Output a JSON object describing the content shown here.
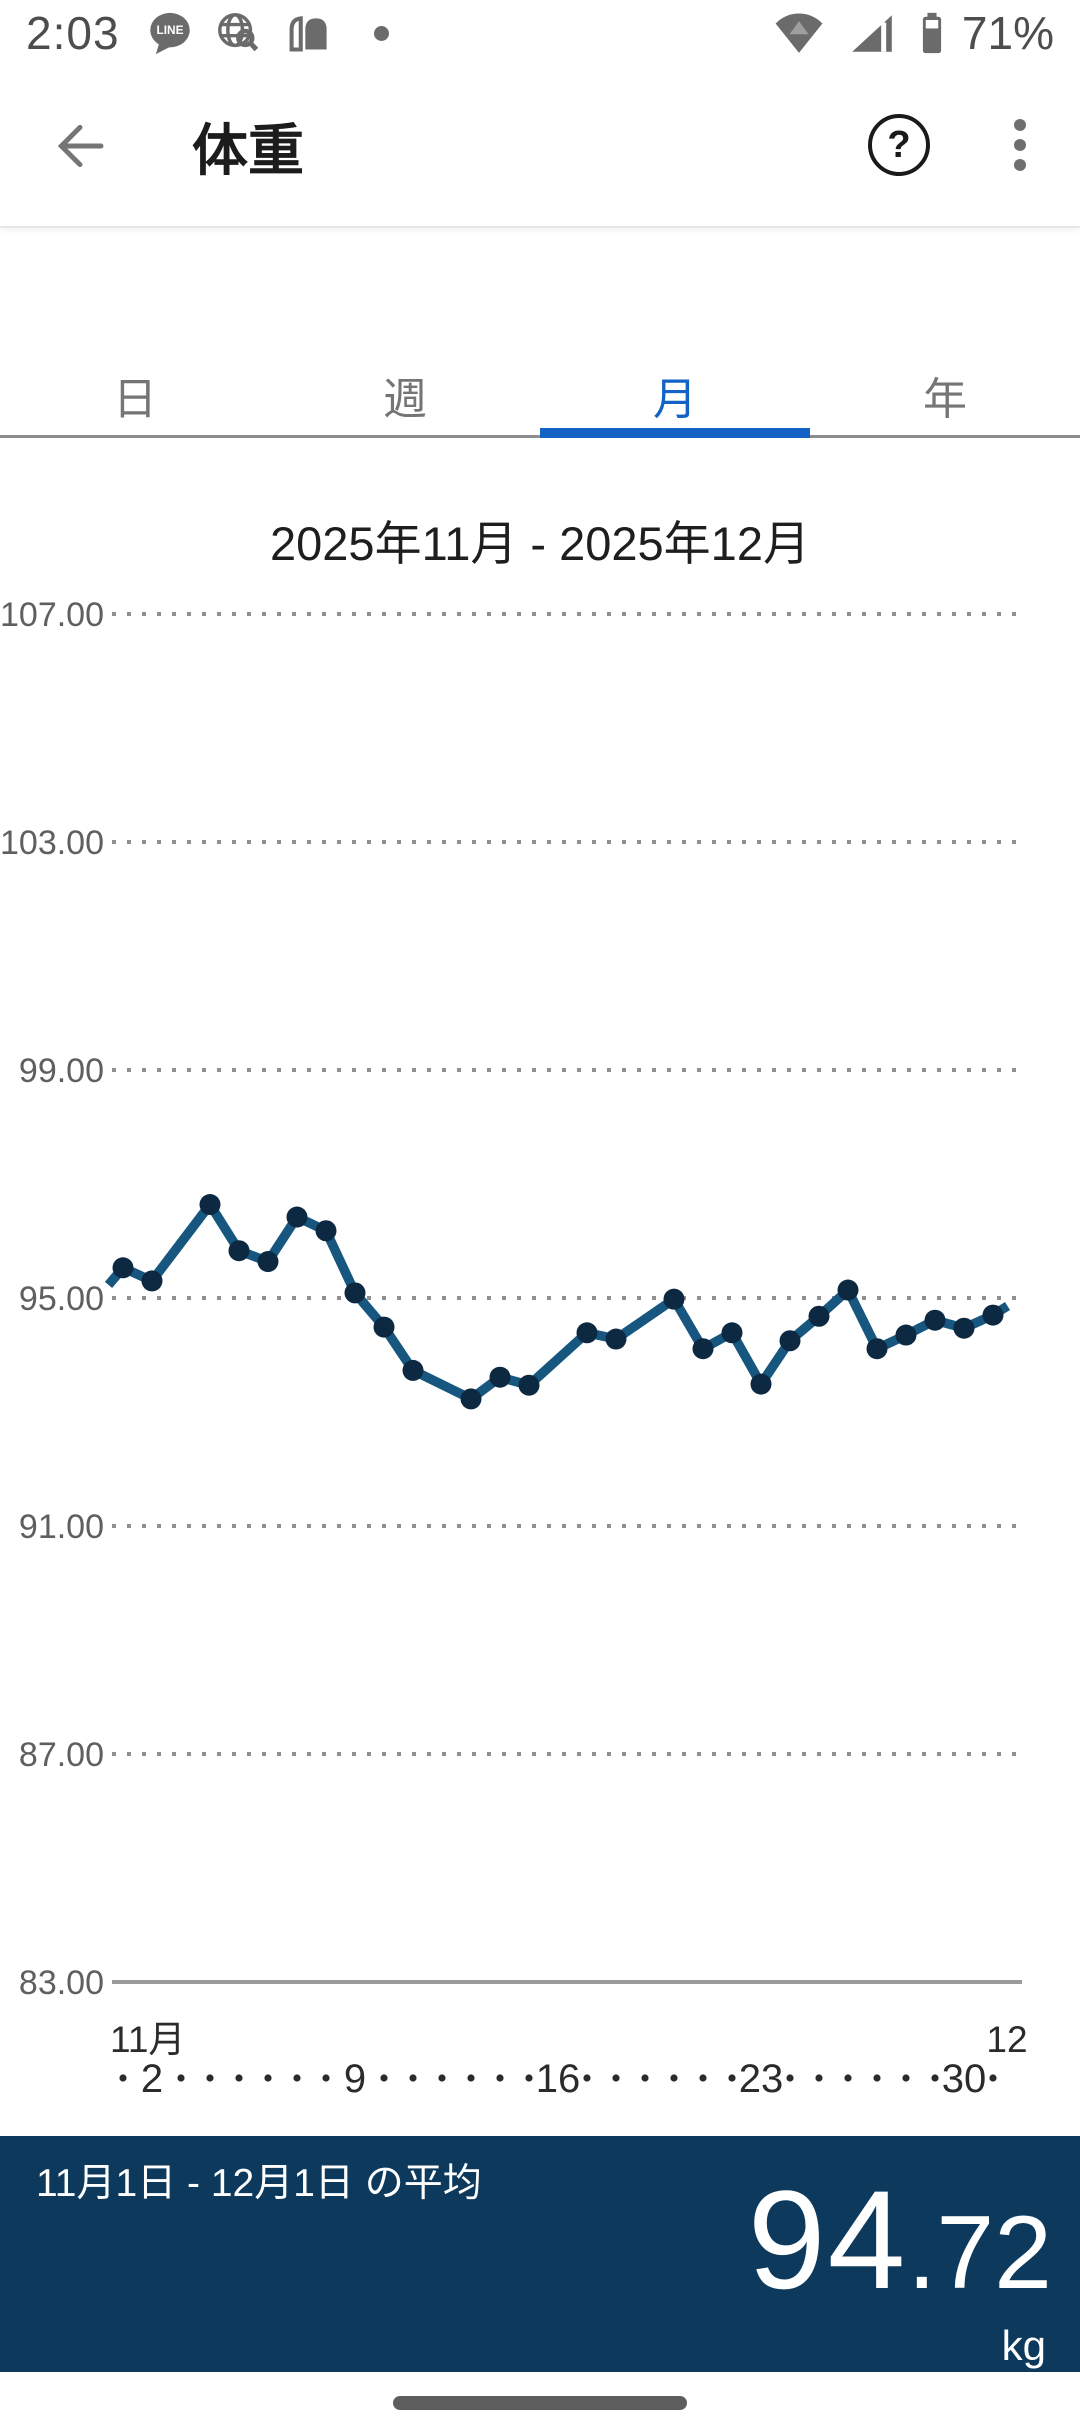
{
  "colors": {
    "accent_blue": "#1263c5",
    "chart_line": "#17567f",
    "chart_marker": "#0d2941",
    "grid_dotted": "#8f8f8f",
    "axis_solid": "#9a9a9a",
    "axis_text": "#5f5f5f",
    "xaxis_text": "#2b2b2b",
    "panel_bg": "#0d3a5c",
    "status_icon_gray": "#6b6b6b"
  },
  "status_bar": {
    "time": "2:03",
    "battery_percent": "71%",
    "line_icon_text": "LINE",
    "left_icons": [
      "line-app-icon",
      "web-search-icon",
      "door-open-icon",
      "notification-dot"
    ],
    "right_icons": [
      "wifi-icon",
      "cellular-signal-icon",
      "battery-icon"
    ]
  },
  "header": {
    "title": "体重",
    "icons": [
      "back-arrow-icon",
      "help-circle-icon",
      "overflow-menu-icon"
    ],
    "help_glyph": "?"
  },
  "tabs": {
    "items": [
      {
        "label": "日",
        "active": false
      },
      {
        "label": "週",
        "active": false
      },
      {
        "label": "月",
        "active": true
      },
      {
        "label": "年",
        "active": false
      }
    ]
  },
  "chart_data": {
    "type": "line",
    "title": "2025年11月 - 2025年12月",
    "ylabel": "",
    "xlabel": "",
    "ylim": [
      83,
      107
    ],
    "grid": "dotted horizontal gridlines, solid baseline at 83.00",
    "legend": "none",
    "y_axis": {
      "ticks": [
        107,
        103,
        99,
        95,
        91,
        87,
        83
      ],
      "tick_labels": [
        "107.00",
        "103.00",
        "99.00",
        "95.00",
        "91.00",
        "87.00",
        "83.00"
      ],
      "baseline_tick": 83
    },
    "x_axis": {
      "month_label_left": "11月",
      "month_label_right": "12",
      "n_days": 31,
      "labeled_days": [
        2,
        9,
        16,
        23,
        30
      ],
      "range_note": "day 1 = 11月1日, day 31 = 12月1日, unlabeled days shown as small dots"
    },
    "missing_days": [
      3,
      12,
      16,
      19
    ],
    "edge_start": {
      "day": 0.5,
      "value": 95.23
    },
    "edge_end": {
      "day": 31.5,
      "value": 94.86
    },
    "series": [
      {
        "name": "体重",
        "unit": "kg",
        "points": [
          {
            "day": 1,
            "value": 95.53
          },
          {
            "day": 2,
            "value": 95.3
          },
          {
            "day": 4,
            "value": 96.64
          },
          {
            "day": 5,
            "value": 95.83
          },
          {
            "day": 6,
            "value": 95.64
          },
          {
            "day": 7,
            "value": 96.42
          },
          {
            "day": 8,
            "value": 96.18
          },
          {
            "day": 9,
            "value": 95.09
          },
          {
            "day": 10,
            "value": 94.49
          },
          {
            "day": 11,
            "value": 93.73
          },
          {
            "day": 13,
            "value": 93.23
          },
          {
            "day": 14,
            "value": 93.61
          },
          {
            "day": 15,
            "value": 93.47
          },
          {
            "day": 17,
            "value": 94.39
          },
          {
            "day": 18,
            "value": 94.28
          },
          {
            "day": 20,
            "value": 94.98
          },
          {
            "day": 21,
            "value": 94.11
          },
          {
            "day": 22,
            "value": 94.39
          },
          {
            "day": 23,
            "value": 93.49
          },
          {
            "day": 24,
            "value": 94.25
          },
          {
            "day": 25,
            "value": 94.68
          },
          {
            "day": 26,
            "value": 95.14
          },
          {
            "day": 27,
            "value": 94.11
          },
          {
            "day": 28,
            "value": 94.35
          },
          {
            "day": 29,
            "value": 94.61
          },
          {
            "day": 30,
            "value": 94.47
          },
          {
            "day": 31,
            "value": 94.7
          }
        ]
      }
    ]
  },
  "summary": {
    "label": "11月1日 - 12月1日 の平均",
    "value": 94.72,
    "value_int": "94",
    "value_dec": ".72",
    "unit": "kg"
  }
}
